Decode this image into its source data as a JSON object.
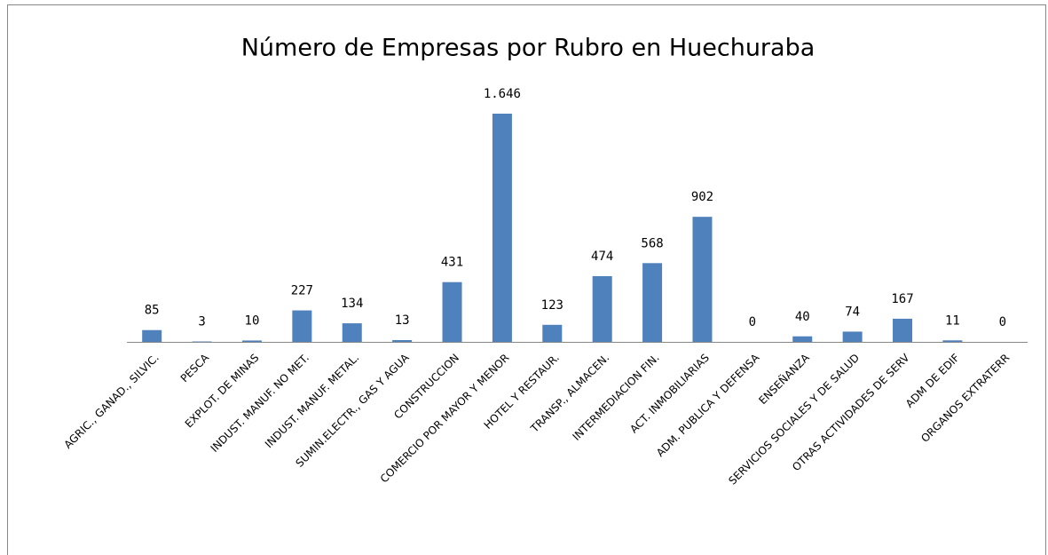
{
  "chart_data": {
    "type": "bar",
    "title": "Número de Empresas por Rubro en Huechuraba",
    "categories": [
      "AGRIC., GANAD., SILVIC.",
      "PESCA",
      "EXPLOT. DE MINAS",
      "INDUST. MANUF. NO MET.",
      "INDUST. MANUF. METAL.",
      "SUMIN.ELECTR., GAS Y AGUA",
      "CONSTRUCCION",
      "COMERCIO POR MAYOR Y MENOR",
      "HOTEL Y RESTAUR.",
      "TRANSP., ALMACEN.",
      "INTERMEDIACION FIN.",
      "ACT. INMOBILIARIAS",
      "ADM. PUBLICA Y DEFENSA",
      "ENSEÑANZA",
      "SERVICIOS SOCIALES Y DE SALUD",
      "OTRAS ACTIVIDADES DE SERV",
      "ADM DE EDIF",
      "ORGANOS EXTRATERR"
    ],
    "values": [
      85,
      3,
      10,
      227,
      134,
      13,
      431,
      1646,
      123,
      474,
      568,
      902,
      0,
      40,
      74,
      167,
      11,
      0
    ],
    "value_labels": [
      "85",
      "3",
      "10",
      "227",
      "134",
      "13",
      "431",
      "1.646",
      "123",
      "474",
      "568",
      "902",
      "0",
      "40",
      "74",
      "167",
      "11",
      "0"
    ],
    "color": "#4f81bd"
  }
}
